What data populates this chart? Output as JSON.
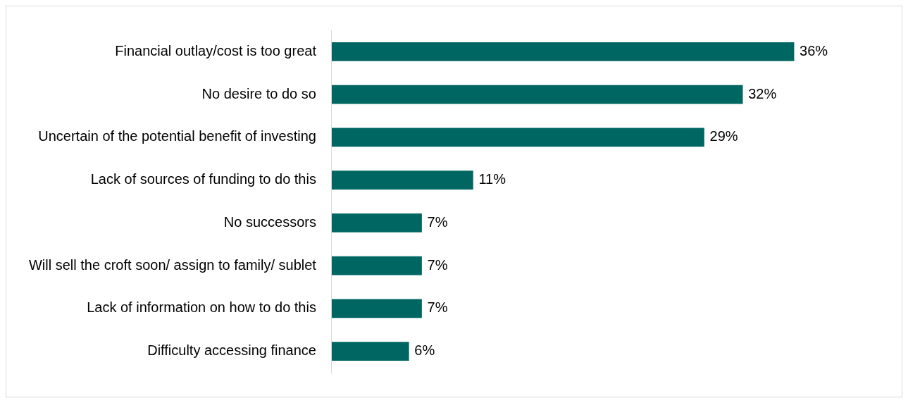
{
  "chart_data": {
    "type": "bar",
    "orientation": "horizontal",
    "categories": [
      "Financial outlay/cost is too great",
      "No desire to do so",
      "Uncertain of the potential benefit of investing",
      "Lack of sources of funding to do this",
      "No successors",
      "Will sell the croft soon/ assign to family/ sublet",
      "Lack of information on how to do this",
      "Difficulty accessing finance"
    ],
    "values": [
      36,
      32,
      29,
      11,
      7,
      7,
      7,
      6
    ],
    "value_labels": [
      "36%",
      "32%",
      "29%",
      "11%",
      "7%",
      "7%",
      "7%",
      "6%"
    ],
    "color": "#006661",
    "legend": false
  }
}
